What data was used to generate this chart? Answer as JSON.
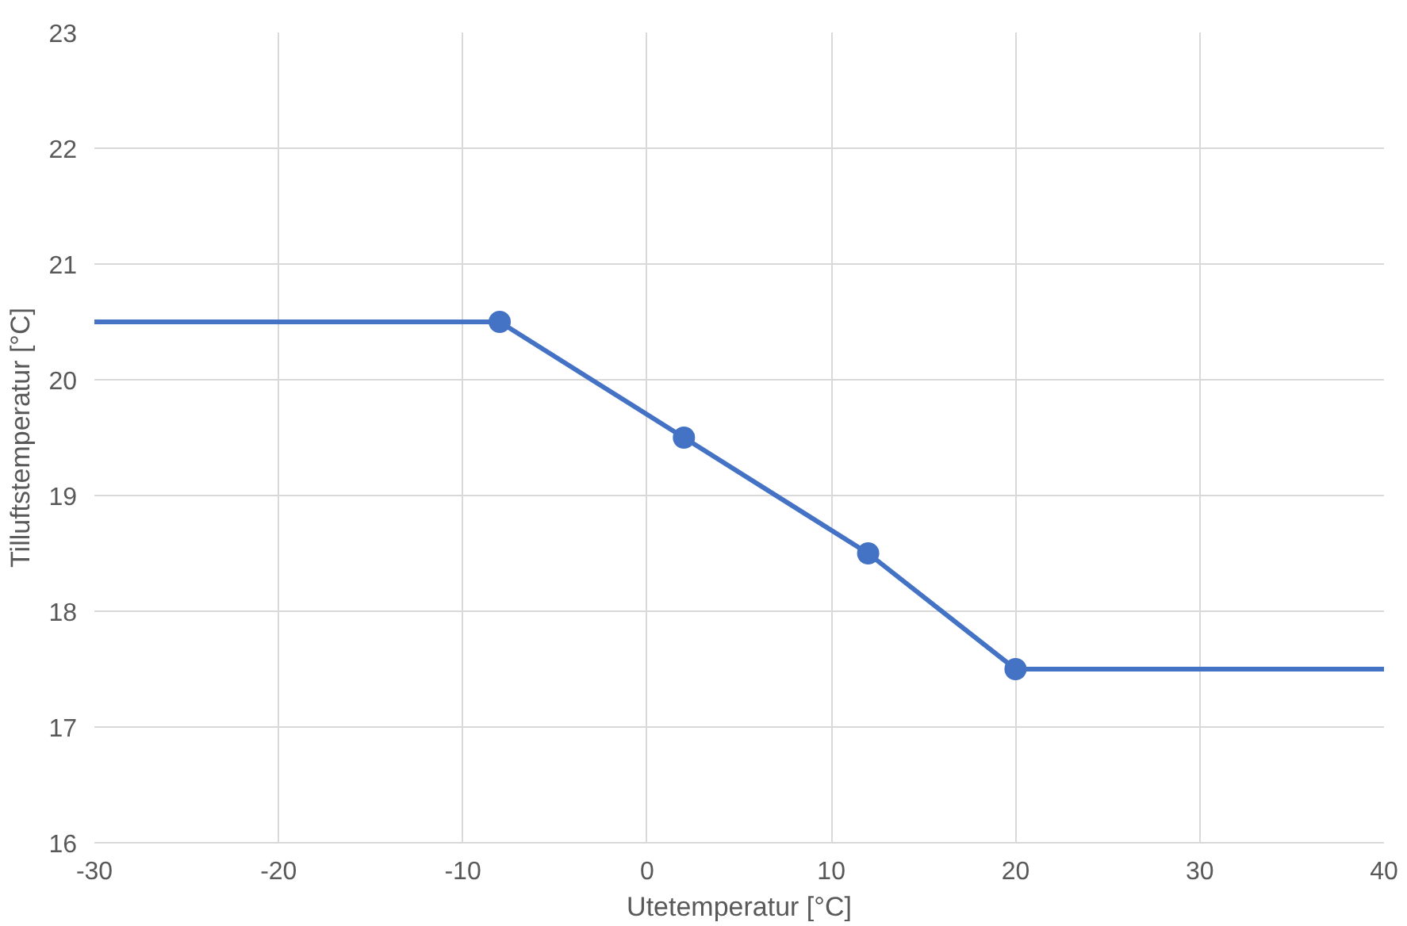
{
  "chart_data": {
    "type": "line",
    "xlabel": "Utetemperatur [°C]",
    "ylabel": "Tilluftstemperatur [°C]",
    "series": [
      {
        "color": "#4472c4",
        "x": [
          -30,
          -8,
          2,
          12,
          20,
          40
        ],
        "values": [
          20.5,
          20.5,
          19.5,
          18.5,
          17.5,
          17.5
        ],
        "marker": "none"
      },
      {
        "type": "scatter",
        "color": "#4472c4",
        "x": [
          -8,
          2,
          12,
          20
        ],
        "values": [
          20.5,
          19.5,
          18.5,
          17.5
        ],
        "marker": "circle"
      }
    ],
    "xlim": [
      -30,
      40
    ],
    "xticks": [
      -30,
      -20,
      -10,
      0,
      10,
      20,
      30,
      40
    ],
    "ylim": [
      16,
      23
    ],
    "yticks": [
      16,
      17,
      18,
      19,
      20,
      21,
      22,
      23
    ],
    "grid": true
  }
}
